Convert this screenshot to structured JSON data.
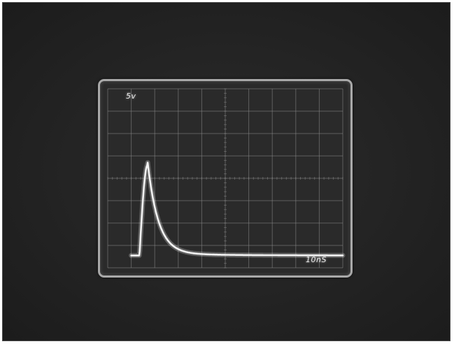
{
  "scope": {
    "volts_per_div": "5v",
    "time_per_div": "10nS"
  },
  "colors": {
    "background": "#232323",
    "bezel": "#a9a9a9",
    "grid": "#8a8a8a",
    "trace": "#f2f2f2"
  },
  "trace": {
    "description_shape": "single fast pulse",
    "baseline_divisions": 0.55,
    "peak_divisions": 4.6,
    "peak_time_divisions": 1.7
  }
}
